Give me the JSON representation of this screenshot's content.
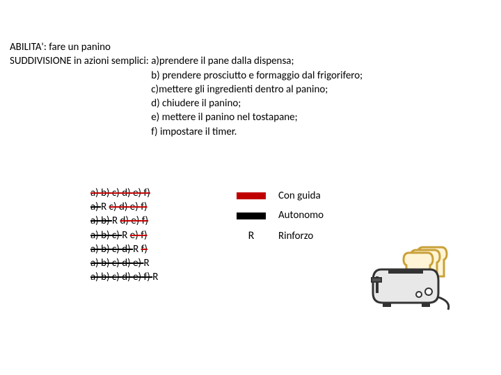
{
  "header": {
    "abilita_label": "ABILITA':",
    "abilita_value": "fare un panino",
    "suddiv_prefix": "SUDDIVISIONE in azioni semplici: ",
    "steps": [
      "a)prendere il pane dalla dispensa;",
      "b) prendere prosciutto e formaggio dal frigorifero;",
      "c)mettere gli ingredienti dentro al panino;",
      "d) chiudere il panino;",
      "e) mettere il panino nel tostapane;",
      "f) impostare il timer."
    ]
  },
  "trials": {
    "tokens": [
      "a)",
      "b)",
      "c)",
      "d)",
      "e)",
      "f)"
    ],
    "rmark": "R",
    "matrix": [
      [
        "t",
        "t",
        "t",
        "t",
        "t",
        "t"
      ],
      [
        "t",
        "R",
        "t",
        "t",
        "t",
        "t"
      ],
      [
        "t",
        "t",
        "R",
        "t",
        "t",
        "t"
      ],
      [
        "t",
        "t",
        "t",
        "R",
        "t",
        "t"
      ],
      [
        "t",
        "t",
        "t",
        "t",
        "R",
        "t"
      ],
      [
        "t",
        "t",
        "t",
        "t",
        "t",
        "R"
      ],
      [
        "t",
        "t",
        "t",
        "t",
        "t",
        "p"
      ]
    ],
    "trailing_R_row": 6
  },
  "legend": {
    "con_guida": "Con guida",
    "autonomo": "Autonomo",
    "rinforzo": "Rinforzo",
    "rmark": "R",
    "colors": {
      "guided": "#c00000",
      "autonomo": "#000000"
    }
  }
}
